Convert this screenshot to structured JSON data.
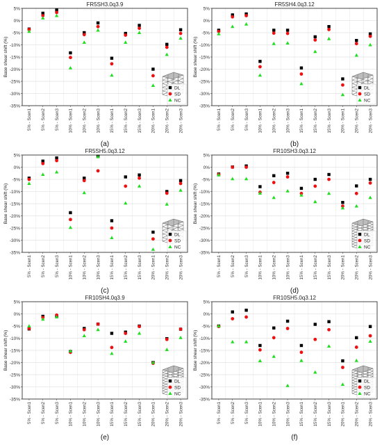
{
  "figure": {
    "ylabel": "Base shear shift (%)",
    "categories": [
      "5% - Scen1",
      "5% - Scen2",
      "5% - Scen3",
      "10% - Scen1",
      "10% - Scen2",
      "10% - Scen3",
      "15% - Scen1",
      "15% - Scen2",
      "15% - Scen3",
      "20% - Scen1",
      "20% - Scen2",
      "20% - Scen3"
    ],
    "yticks": [
      "5%",
      "0%",
      "-5%",
      "-10%",
      "-15%",
      "-20%",
      "-25%",
      "-30%",
      "-35%"
    ],
    "legend": [
      "DL",
      "SD",
      "NC"
    ],
    "colors": {
      "DL": "#000000",
      "SD": "#ee1111",
      "NC": "#22dd22"
    }
  },
  "chart_data": [
    {
      "type": "scatter",
      "title": "FR5SH3.0q3.9",
      "caption": "(a)",
      "ylim": [
        -35,
        5
      ],
      "series": [
        {
          "name": "DL",
          "values": [
            -3.5,
            3.0,
            4.3,
            -13.3,
            -5.0,
            -1.0,
            -15.5,
            -5.3,
            -2.0,
            -20.0,
            -9.8,
            -3.8
          ]
        },
        {
          "name": "SD",
          "values": [
            -3.7,
            2.0,
            3.3,
            -15.2,
            -5.8,
            -2.5,
            -17.8,
            -6.0,
            -3.2,
            -22.7,
            -11.0,
            -5.3
          ]
        },
        {
          "name": "NC",
          "values": [
            -4.5,
            1.0,
            2.0,
            -19.5,
            -9.0,
            -4.0,
            -22.5,
            -9.0,
            -5.0,
            -26.7,
            -14.0,
            -7.3
          ]
        }
      ]
    },
    {
      "type": "scatter",
      "title": "FR5SH4.0q3.12",
      "caption": "(b)",
      "ylim": [
        -35,
        5
      ],
      "series": [
        {
          "name": "DL",
          "values": [
            -4.0,
            2.3,
            2.7,
            -16.8,
            -4.0,
            -4.0,
            -19.5,
            -6.7,
            -2.5,
            -24.0,
            -8.2,
            -5.5
          ]
        },
        {
          "name": "SD",
          "values": [
            -4.5,
            1.5,
            2.0,
            -19.0,
            -5.2,
            -5.3,
            -22.0,
            -8.0,
            -3.7,
            -26.5,
            -9.5,
            -6.5
          ]
        },
        {
          "name": "NC",
          "values": [
            -5.5,
            -2.5,
            -1.5,
            -22.5,
            -9.5,
            -9.3,
            -26.0,
            -12.8,
            -7.5,
            -30.5,
            -14.3,
            -10.0
          ]
        }
      ]
    },
    {
      "type": "scatter",
      "title": "FR5SH5.0q3.12",
      "caption": "(c)",
      "ylim": [
        -35,
        5
      ],
      "series": [
        {
          "name": "DL",
          "values": [
            -4.5,
            2.5,
            3.8,
            -18.7,
            -4.5,
            4.5,
            -22.0,
            -4.0,
            -3.2,
            -26.7,
            -10.0,
            -5.5
          ]
        },
        {
          "name": "SD",
          "values": [
            -5.0,
            1.5,
            2.7,
            -21.5,
            -5.5,
            -1.5,
            -25.0,
            -7.8,
            -4.5,
            -29.5,
            -10.7,
            -6.7
          ]
        },
        {
          "name": "NC",
          "values": [
            -6.7,
            -3.0,
            -2.0,
            -24.8,
            -10.5,
            4.3,
            -29.0,
            -14.8,
            -7.8,
            -33.8,
            -15.2,
            -9.5
          ]
        }
      ]
    },
    {
      "type": "scatter",
      "title": "FR10SH3.0q3.12",
      "caption": "(d)",
      "ylim": [
        -35,
        5
      ],
      "series": [
        {
          "name": "DL",
          "values": [
            -2.8,
            0.1,
            0.5,
            -8.0,
            -3.5,
            -2.5,
            -8.7,
            -5.0,
            -3.0,
            -14.5,
            -7.7,
            -5.0
          ]
        },
        {
          "name": "SD",
          "values": [
            -3.0,
            0.0,
            0.0,
            -10.3,
            -6.3,
            -4.0,
            -10.8,
            -7.8,
            -5.0,
            -16.0,
            -10.8,
            -6.5
          ]
        },
        {
          "name": "NC",
          "values": [
            -3.2,
            -4.8,
            -4.8,
            -10.7,
            -12.5,
            -9.8,
            -11.5,
            -14.2,
            -10.8,
            -16.8,
            -16.0,
            -12.5
          ]
        }
      ]
    },
    {
      "type": "scatter",
      "title": "FR10SH4.0q3.9",
      "caption": "(e)",
      "ylim": [
        -35,
        5
      ],
      "series": [
        {
          "name": "DL",
          "values": [
            -6.2,
            -1.0,
            -0.8,
            -15.5,
            -6.0,
            -4.2,
            -8.0,
            -7.5,
            -5.0,
            -20.0,
            -10.2,
            -6.3
          ]
        },
        {
          "name": "SD",
          "values": [
            -6.0,
            -1.5,
            -0.5,
            -15.8,
            -6.5,
            -4.2,
            -13.8,
            -8.0,
            -5.2,
            -20.3,
            -10.5,
            -6.3
          ]
        },
        {
          "name": "NC",
          "values": [
            -5.0,
            -2.2,
            -1.3,
            -15.3,
            -9.0,
            -6.5,
            -16.3,
            -11.3,
            -8.0,
            -20.0,
            -14.7,
            -9.8
          ]
        }
      ]
    },
    {
      "type": "scatter",
      "title": "FR10SH5.0q3.12",
      "caption": "(f)",
      "ylim": [
        -35,
        5
      ],
      "series": [
        {
          "name": "DL",
          "values": [
            -5.0,
            0.8,
            1.5,
            -13.0,
            -5.8,
            -3.0,
            -13.0,
            -4.3,
            -3.2,
            -19.3,
            -9.8,
            -5.2
          ]
        },
        {
          "name": "SD",
          "values": [
            -5.2,
            -2.0,
            -1.3,
            -14.8,
            -9.8,
            -6.0,
            -15.8,
            -10.5,
            -6.5,
            -22.0,
            -13.7,
            -9.0
          ]
        },
        {
          "name": "NC",
          "values": [
            -5.0,
            -11.5,
            -11.5,
            -19.3,
            -17.5,
            -29.5,
            -19.2,
            -24.0,
            -13.3,
            -29.0,
            -19.2,
            -11.3
          ]
        }
      ]
    }
  ]
}
